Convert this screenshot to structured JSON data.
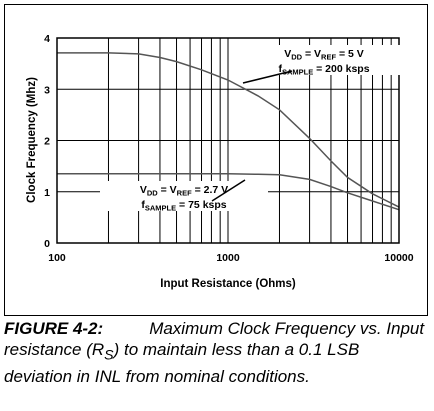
{
  "chart_data": {
    "type": "line",
    "xlabel": "Input Resistance (Ohms)",
    "ylabel": "Clock Frequency (Mhz)",
    "xscale": "log",
    "xlim": [
      100,
      10000
    ],
    "ylim": [
      0,
      4
    ],
    "x_tick_labels": [
      "100",
      "1000",
      "10000"
    ],
    "y_tick_labels": [
      "0",
      "1",
      "2",
      "3",
      "4"
    ],
    "grid": true,
    "series": [
      {
        "name": "",
        "color": "#555555",
        "x": [
          100,
          200,
          300,
          400,
          500,
          700,
          1000,
          1500,
          2000,
          3000,
          4000,
          5000,
          7000,
          10000
        ],
        "y": [
          3.71,
          3.71,
          3.69,
          3.62,
          3.54,
          3.38,
          3.18,
          2.87,
          2.6,
          2.04,
          1.6,
          1.28,
          0.96,
          0.7
        ]
      },
      {
        "name": "",
        "color": "#555555",
        "x": [
          100,
          200,
          300,
          500,
          700,
          1000,
          1500,
          2000,
          3000,
          4000,
          5000,
          7000,
          10000
        ],
        "y": [
          1.35,
          1.35,
          1.35,
          1.35,
          1.35,
          1.35,
          1.34,
          1.33,
          1.24,
          1.1,
          0.98,
          0.82,
          0.65
        ]
      }
    ],
    "annotations": [
      {
        "line1": [
          "V",
          "DD",
          " = V",
          "REF",
          " = 5 V"
        ],
        "line2": [
          "f",
          "SAMPLE",
          " = 200 ksps"
        ]
      },
      {
        "line1": [
          "V",
          "DD",
          " = V",
          "REF",
          " = 2.7 V"
        ],
        "line2": [
          "f",
          "SAMPLE",
          " = 75 ksps"
        ]
      }
    ]
  },
  "caption": {
    "label": "FIGURE 4-2:",
    "text_before_sub": "Maximum Clock Frequency vs. Input resistance (R",
    "sub": "S",
    "text_after_sub": ") to maintain less than a 0.1 LSB deviation in INL from nominal conditions."
  }
}
